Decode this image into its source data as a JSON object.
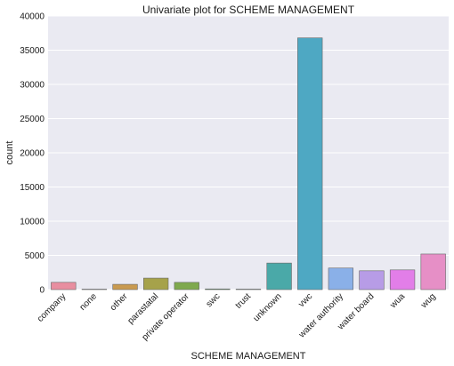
{
  "chart_data": {
    "type": "bar",
    "title": "Univariate plot for SCHEME MANAGEMENT",
    "xlabel": "SCHEME MANAGEMENT",
    "ylabel": "count",
    "ylim": [
      0,
      40000
    ],
    "yticks": [
      0,
      5000,
      10000,
      15000,
      20000,
      25000,
      30000,
      35000,
      40000
    ],
    "grid": true,
    "categories": [
      "company",
      "none",
      "other",
      "parastatal",
      "private operator",
      "swc",
      "trust",
      "unknown",
      "vwc",
      "water authority",
      "water board",
      "wua",
      "wug"
    ],
    "values": [
      1060,
      1,
      770,
      1680,
      1060,
      100,
      70,
      3880,
      36800,
      3150,
      2750,
      2880,
      5200
    ],
    "colors": [
      "#e88ea0",
      "#e3958a",
      "#c99a50",
      "#a6a24a",
      "#7fa94e",
      "#57b063",
      "#4fb098",
      "#4aa9a8",
      "#4ea8c3",
      "#8ab0e8",
      "#b79ce6",
      "#e27ee8",
      "#e68fc6"
    ]
  }
}
